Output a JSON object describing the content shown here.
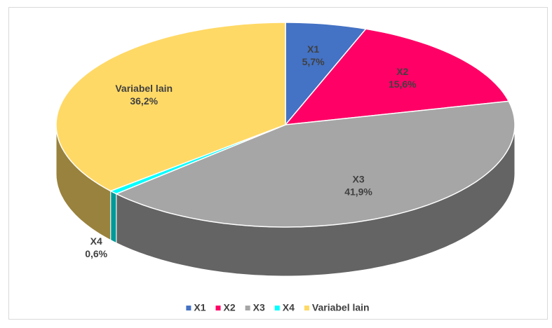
{
  "chart_data": {
    "type": "pie",
    "categories": [
      "X1",
      "X2",
      "X3",
      "X4",
      "Variabel lain"
    ],
    "values": [
      5.7,
      15.6,
      41.9,
      0.6,
      36.2
    ],
    "value_labels": [
      "5,7%",
      "15,6%",
      "41,9%",
      "0,6%",
      "36,2%"
    ],
    "colors": [
      "#4472c4",
      "#ff0066",
      "#a6a6a6",
      "#00ffff",
      "#ffd966"
    ],
    "legend": "bottom"
  }
}
